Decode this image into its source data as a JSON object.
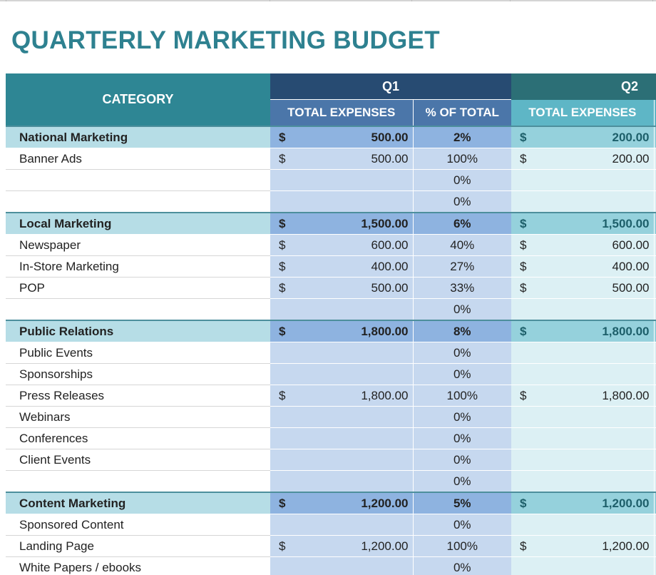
{
  "title": "QUARTERLY MARKETING BUDGET",
  "header": {
    "category": "CATEGORY",
    "q1": "Q1",
    "q2": "Q2",
    "total_expenses": "TOTAL EXPENSES",
    "pct_of_total": "% OF TOTAL"
  },
  "currency": "$",
  "rows": [
    {
      "category": "National Marketing",
      "section": true,
      "q1_amount": "500.00",
      "q1_pct": "2%",
      "q2_amount": "200.00"
    },
    {
      "category": "Banner Ads",
      "section": false,
      "q1_amount": "500.00",
      "q1_pct": "100%",
      "q2_amount": "200.00"
    },
    {
      "category": "",
      "section": false,
      "q1_amount": "",
      "q1_pct": "0%",
      "q2_amount": ""
    },
    {
      "category": "",
      "section": false,
      "q1_amount": "",
      "q1_pct": "0%",
      "q2_amount": ""
    },
    {
      "category": "Local Marketing",
      "section": true,
      "q1_amount": "1,500.00",
      "q1_pct": "6%",
      "q2_amount": "1,500.00"
    },
    {
      "category": "Newspaper",
      "section": false,
      "q1_amount": "600.00",
      "q1_pct": "40%",
      "q2_amount": "600.00"
    },
    {
      "category": "In-Store Marketing",
      "section": false,
      "q1_amount": "400.00",
      "q1_pct": "27%",
      "q2_amount": "400.00"
    },
    {
      "category": "POP",
      "section": false,
      "q1_amount": "500.00",
      "q1_pct": "33%",
      "q2_amount": "500.00"
    },
    {
      "category": "",
      "section": false,
      "q1_amount": "",
      "q1_pct": "0%",
      "q2_amount": ""
    },
    {
      "category": "Public Relations",
      "section": true,
      "q1_amount": "1,800.00",
      "q1_pct": "8%",
      "q2_amount": "1,800.00"
    },
    {
      "category": "Public Events",
      "section": false,
      "q1_amount": "",
      "q1_pct": "0%",
      "q2_amount": ""
    },
    {
      "category": "Sponsorships",
      "section": false,
      "q1_amount": "",
      "q1_pct": "0%",
      "q2_amount": ""
    },
    {
      "category": "Press Releases",
      "section": false,
      "q1_amount": "1,800.00",
      "q1_pct": "100%",
      "q2_amount": "1,800.00"
    },
    {
      "category": "Webinars",
      "section": false,
      "q1_amount": "",
      "q1_pct": "0%",
      "q2_amount": ""
    },
    {
      "category": "Conferences",
      "section": false,
      "q1_amount": "",
      "q1_pct": "0%",
      "q2_amount": ""
    },
    {
      "category": "Client Events",
      "section": false,
      "q1_amount": "",
      "q1_pct": "0%",
      "q2_amount": ""
    },
    {
      "category": "",
      "section": false,
      "q1_amount": "",
      "q1_pct": "0%",
      "q2_amount": ""
    },
    {
      "category": "Content Marketing",
      "section": true,
      "q1_amount": "1,200.00",
      "q1_pct": "5%",
      "q2_amount": "1,200.00"
    },
    {
      "category": "Sponsored Content",
      "section": false,
      "q1_amount": "",
      "q1_pct": "0%",
      "q2_amount": ""
    },
    {
      "category": "Landing Page",
      "section": false,
      "q1_amount": "1,200.00",
      "q1_pct": "100%",
      "q2_amount": "1,200.00"
    },
    {
      "category": "White Papers / ebooks",
      "section": false,
      "q1_amount": "",
      "q1_pct": "0%",
      "q2_amount": ""
    }
  ]
}
